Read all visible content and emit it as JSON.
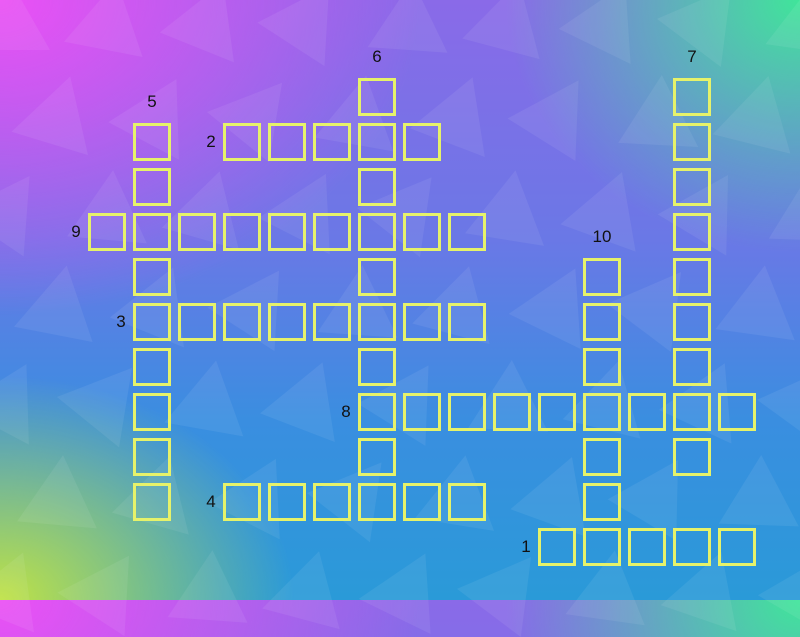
{
  "puzzle": {
    "type": "crossword",
    "cell_border_color": "#e6f26a",
    "clues": [
      {
        "number": "1",
        "direction": "across",
        "length": 5
      },
      {
        "number": "2",
        "direction": "across",
        "length": 5
      },
      {
        "number": "3",
        "direction": "across",
        "length": 8
      },
      {
        "number": "4",
        "direction": "across",
        "length": 6
      },
      {
        "number": "5",
        "direction": "down",
        "length": 9
      },
      {
        "number": "6",
        "direction": "down",
        "length": 9
      },
      {
        "number": "7",
        "direction": "down",
        "length": 9
      },
      {
        "number": "8",
        "direction": "across",
        "length": 9
      },
      {
        "number": "9",
        "direction": "across",
        "length": 9
      },
      {
        "number": "10",
        "direction": "down",
        "length": 6
      }
    ]
  }
}
